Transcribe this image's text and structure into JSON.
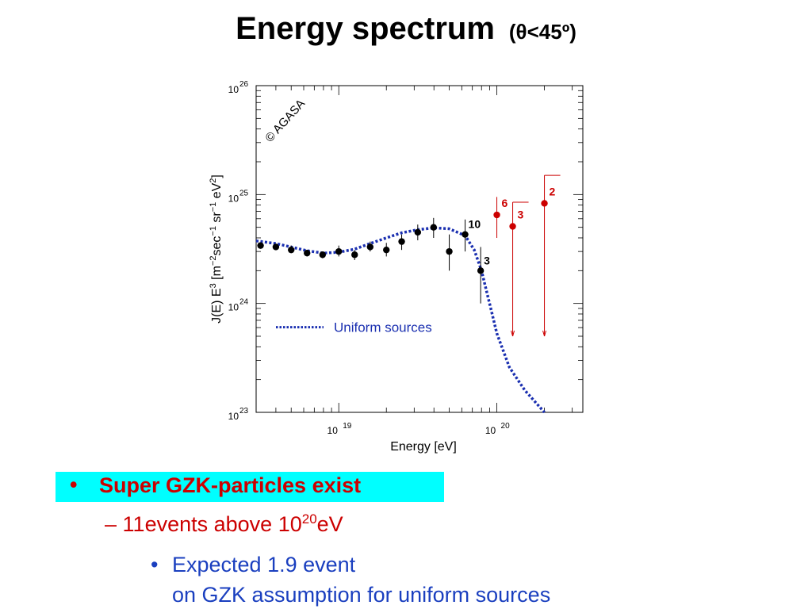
{
  "title": {
    "main": "Energy spectrum",
    "sub": "(θ<45º)"
  },
  "chart_data": {
    "type": "scatter",
    "xscale": "log",
    "yscale": "log",
    "xlim": [
      3e+18,
      3.5e+20
    ],
    "ylim": [
      1e+23,
      1e+26
    ],
    "xlabel": "Energy [eV]",
    "ylabel_parts": [
      "J(E) E",
      "3",
      " [m",
      "−2",
      "sec",
      "−1",
      " sr",
      "−1",
      " eV",
      "2",
      "]"
    ],
    "xticks": [
      {
        "base": "10",
        "exp": "19",
        "value": 1e+19
      },
      {
        "base": "10",
        "exp": "20",
        "value": 1e+20
      }
    ],
    "yticks": [
      {
        "base": "10",
        "exp": "23",
        "value": 1e+23
      },
      {
        "base": "10",
        "exp": "24",
        "value": 1e+24
      },
      {
        "base": "10",
        "exp": "25",
        "value": 1e+25
      },
      {
        "base": "10",
        "exp": "26",
        "value": 1e+26
      }
    ],
    "watermark": "© AGASA",
    "legend": {
      "label": "Uniform sources",
      "position": "center-left",
      "color": "#1a2fb0"
    },
    "series": [
      {
        "name": "",
        "color": "#000000",
        "points": [
          {
            "x": 3.2e+18,
            "y": 3.4e+24,
            "ylo": 3.2e+24,
            "yhi": 3.6e+24
          },
          {
            "x": 4e+18,
            "y": 3.3e+24,
            "ylo": 3.1e+24,
            "yhi": 3.5e+24
          },
          {
            "x": 5e+18,
            "y": 3.1e+24,
            "ylo": 2.9e+24,
            "yhi": 3.4e+24
          },
          {
            "x": 6.3e+18,
            "y": 2.9e+24,
            "ylo": 2.7e+24,
            "yhi": 3.1e+24
          },
          {
            "x": 7.9e+18,
            "y": 2.8e+24,
            "ylo": 2.6e+24,
            "yhi": 3e+24
          },
          {
            "x": 1e+19,
            "y": 3e+24,
            "ylo": 2.7e+24,
            "yhi": 3.4e+24
          },
          {
            "x": 1.26e+19,
            "y": 2.8e+24,
            "ylo": 2.5e+24,
            "yhi": 3.1e+24
          },
          {
            "x": 1.58e+19,
            "y": 3.3e+24,
            "ylo": 3e+24,
            "yhi": 3.7e+24
          },
          {
            "x": 2e+19,
            "y": 3.1e+24,
            "ylo": 2.7e+24,
            "yhi": 3.6e+24
          },
          {
            "x": 2.5e+19,
            "y": 3.7e+24,
            "ylo": 3.1e+24,
            "yhi": 4.3e+24
          },
          {
            "x": 3.16e+19,
            "y": 4.5e+24,
            "ylo": 3.8e+24,
            "yhi": 5.3e+24
          },
          {
            "x": 3.98e+19,
            "y": 5e+24,
            "ylo": 4e+24,
            "yhi": 6.1e+24
          },
          {
            "x": 5e+19,
            "y": 3e+24,
            "ylo": 2e+24,
            "yhi": 4.3e+24
          },
          {
            "x": 6.3e+19,
            "y": 4.3e+24,
            "ylo": 3e+24,
            "yhi": 5.9e+24,
            "label": "10"
          },
          {
            "x": 7.9e+19,
            "y": 2e+24,
            "ylo": 1e+24,
            "yhi": 3.3e+24,
            "label": "3"
          }
        ]
      },
      {
        "name": "",
        "color": "#cc0000",
        "points": [
          {
            "x": 1e+20,
            "y": 6.5e+24,
            "ylo": 4e+24,
            "yhi": 9.5e+24,
            "label": "6"
          },
          {
            "x": 1.26e+20,
            "y": 5.1e+24,
            "ylo": 5e+23,
            "yhi": 8.5e+24,
            "label": "3",
            "limit": true
          },
          {
            "x": 2e+20,
            "y": 8.3e+24,
            "ylo": 5e+23,
            "yhi": 1.5e+25,
            "label": "2",
            "limit": true
          }
        ]
      }
    ],
    "curve": {
      "name": "Uniform sources",
      "style": "dotted",
      "color": "#1a2fb0",
      "points": [
        [
          3e+18,
          3.75e+24
        ],
        [
          4e+18,
          3.55e+24
        ],
        [
          5e+18,
          3.3e+24
        ],
        [
          6.3e+18,
          3.05e+24
        ],
        [
          8e+18,
          2.9e+24
        ],
        [
          1e+19,
          2.95e+24
        ],
        [
          1.26e+19,
          3.15e+24
        ],
        [
          1.58e+19,
          3.55e+24
        ],
        [
          2e+19,
          4e+24
        ],
        [
          2.5e+19,
          4.45e+24
        ],
        [
          3.16e+19,
          4.75e+24
        ],
        [
          3.98e+19,
          4.95e+24
        ],
        [
          5e+19,
          4.85e+24
        ],
        [
          6.3e+19,
          4.2e+24
        ],
        [
          7.2e+19,
          3.1e+24
        ],
        [
          8e+19,
          2e+24
        ],
        [
          9e+19,
          1e+24
        ],
        [
          1e+20,
          5.3e+23
        ],
        [
          1.2e+20,
          2.6e+23
        ],
        [
          1.5e+20,
          1.6e+23
        ],
        [
          2e+20,
          1e+23
        ]
      ]
    }
  },
  "bullets": {
    "b1": {
      "marker": "•",
      "text": "Super GZK-particles exist"
    },
    "b2": {
      "marker": "–",
      "pre": "11events above 10",
      "sup": "20",
      "post": "eV"
    },
    "b3": {
      "marker": "•",
      "line1": "Expected 1.9 event",
      "line2": "on GZK assumption for uniform sources"
    }
  }
}
